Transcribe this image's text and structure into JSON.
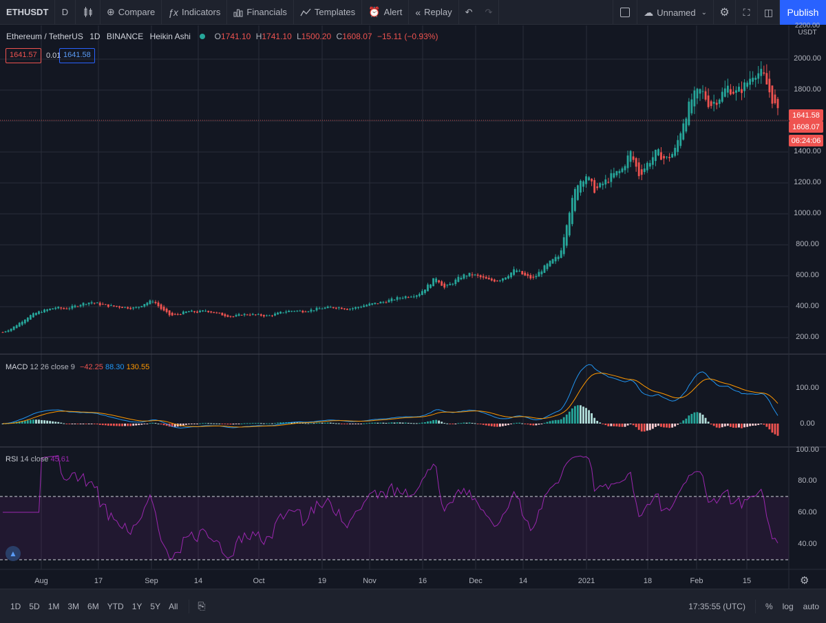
{
  "toolbar": {
    "symbol": "ETHUSDT",
    "interval": "D",
    "compare": "Compare",
    "indicators": "Indicators",
    "financials": "Financials",
    "templates": "Templates",
    "alert": "Alert",
    "replay": "Replay",
    "layout_name": "Unnamed",
    "publish": "Publish"
  },
  "legend": {
    "title": "Ethereum / TetherUS",
    "interval": "1D",
    "exchange": "BINANCE",
    "style": "Heikin Ashi",
    "o_label": "O",
    "o": "1741.10",
    "h_label": "H",
    "h": "1741.10",
    "l_label": "L",
    "l": "1500.20",
    "c_label": "C",
    "c": "1608.07",
    "change": "−15.11 (−0.93%)",
    "bid": "1641.57",
    "spread": "0.01",
    "ask": "1641.58"
  },
  "price_axis": {
    "unit": "USDT",
    "top_label": "2200.00",
    "labels": [
      "2000.00",
      "1800.00",
      "1600.00",
      "1400.00",
      "1200.00",
      "1000.00",
      "800.00",
      "600.00",
      "400.00",
      "200.00"
    ],
    "tag_ask": "1641.58",
    "tag_last": "1608.07",
    "tag_countdown": "06:24:06"
  },
  "macd": {
    "label": "MACD",
    "params": "12 26 close 9",
    "hist": "−42.25",
    "macd": "88.30",
    "signal": "130.55",
    "axis": [
      "100.00",
      "0.00"
    ]
  },
  "rsi": {
    "label": "RSI",
    "params": "14 close",
    "value": "45.61",
    "axis": [
      "100.00",
      "80.00",
      "60.00",
      "40.00"
    ]
  },
  "time_axis": [
    "Aug",
    "17",
    "Sep",
    "14",
    "Oct",
    "19",
    "Nov",
    "16",
    "Dec",
    "14",
    "2021",
    "18",
    "Feb",
    "15"
  ],
  "bottom": {
    "ranges": [
      "1D",
      "5D",
      "1M",
      "3M",
      "6M",
      "YTD",
      "1Y",
      "5Y",
      "All"
    ],
    "clock": "17:35:55 (UTC)",
    "pct": "%",
    "log": "log",
    "auto": "auto"
  },
  "colors": {
    "up": "#26a69a",
    "down": "#ef5350",
    "macd_line": "#2196f3",
    "signal_line": "#ff9800",
    "rsi_line": "#9c27b0",
    "background": "#131722"
  },
  "chart_data": {
    "type": "candlestick",
    "series_style": "Heikin Ashi",
    "ylim": [
      0,
      2200
    ],
    "points": [
      [
        0,
        235
      ],
      [
        4,
        260
      ],
      [
        8,
        300
      ],
      [
        12,
        340
      ],
      [
        16,
        365
      ],
      [
        20,
        380
      ],
      [
        24,
        395
      ],
      [
        28,
        385
      ],
      [
        32,
        400
      ],
      [
        36,
        420
      ],
      [
        40,
        430
      ],
      [
        44,
        415
      ],
      [
        48,
        405
      ],
      [
        52,
        400
      ],
      [
        56,
        395
      ],
      [
        60,
        390
      ],
      [
        64,
        420
      ],
      [
        68,
        440
      ],
      [
        72,
        380
      ],
      [
        76,
        340
      ],
      [
        80,
        355
      ],
      [
        84,
        370
      ],
      [
        88,
        365
      ],
      [
        92,
        375
      ],
      [
        96,
        360
      ],
      [
        100,
        345
      ],
      [
        104,
        335
      ],
      [
        108,
        350
      ],
      [
        112,
        350
      ],
      [
        116,
        345
      ],
      [
        120,
        340
      ],
      [
        124,
        355
      ],
      [
        128,
        370
      ],
      [
        132,
        375
      ],
      [
        136,
        370
      ],
      [
        140,
        380
      ],
      [
        144,
        390
      ],
      [
        148,
        395
      ],
      [
        152,
        395
      ],
      [
        156,
        385
      ],
      [
        160,
        395
      ],
      [
        164,
        410
      ],
      [
        168,
        420
      ],
      [
        172,
        430
      ],
      [
        176,
        445
      ],
      [
        180,
        460
      ],
      [
        184,
        470
      ],
      [
        188,
        480
      ],
      [
        192,
        530
      ],
      [
        196,
        590
      ],
      [
        200,
        520
      ],
      [
        204,
        560
      ],
      [
        208,
        600
      ],
      [
        212,
        610
      ],
      [
        216,
        590
      ],
      [
        220,
        570
      ],
      [
        224,
        570
      ],
      [
        228,
        600
      ],
      [
        232,
        640
      ],
      [
        236,
        600
      ],
      [
        240,
        580
      ],
      [
        244,
        640
      ],
      [
        248,
        690
      ],
      [
        252,
        730
      ],
      [
        256,
        1000
      ],
      [
        260,
        1200
      ],
      [
        264,
        1250
      ],
      [
        268,
        1150
      ],
      [
        272,
        1200
      ],
      [
        276,
        1250
      ],
      [
        280,
        1280
      ],
      [
        284,
        1400
      ],
      [
        288,
        1250
      ],
      [
        292,
        1330
      ],
      [
        296,
        1400
      ],
      [
        300,
        1350
      ],
      [
        304,
        1400
      ],
      [
        308,
        1600
      ],
      [
        312,
        1750
      ],
      [
        316,
        1800
      ],
      [
        320,
        1700
      ],
      [
        324,
        1750
      ],
      [
        328,
        1820
      ],
      [
        332,
        1780
      ],
      [
        336,
        1830
      ],
      [
        340,
        1920
      ],
      [
        344,
        1900
      ],
      [
        348,
        1750
      ],
      [
        352,
        1608
      ]
    ]
  }
}
